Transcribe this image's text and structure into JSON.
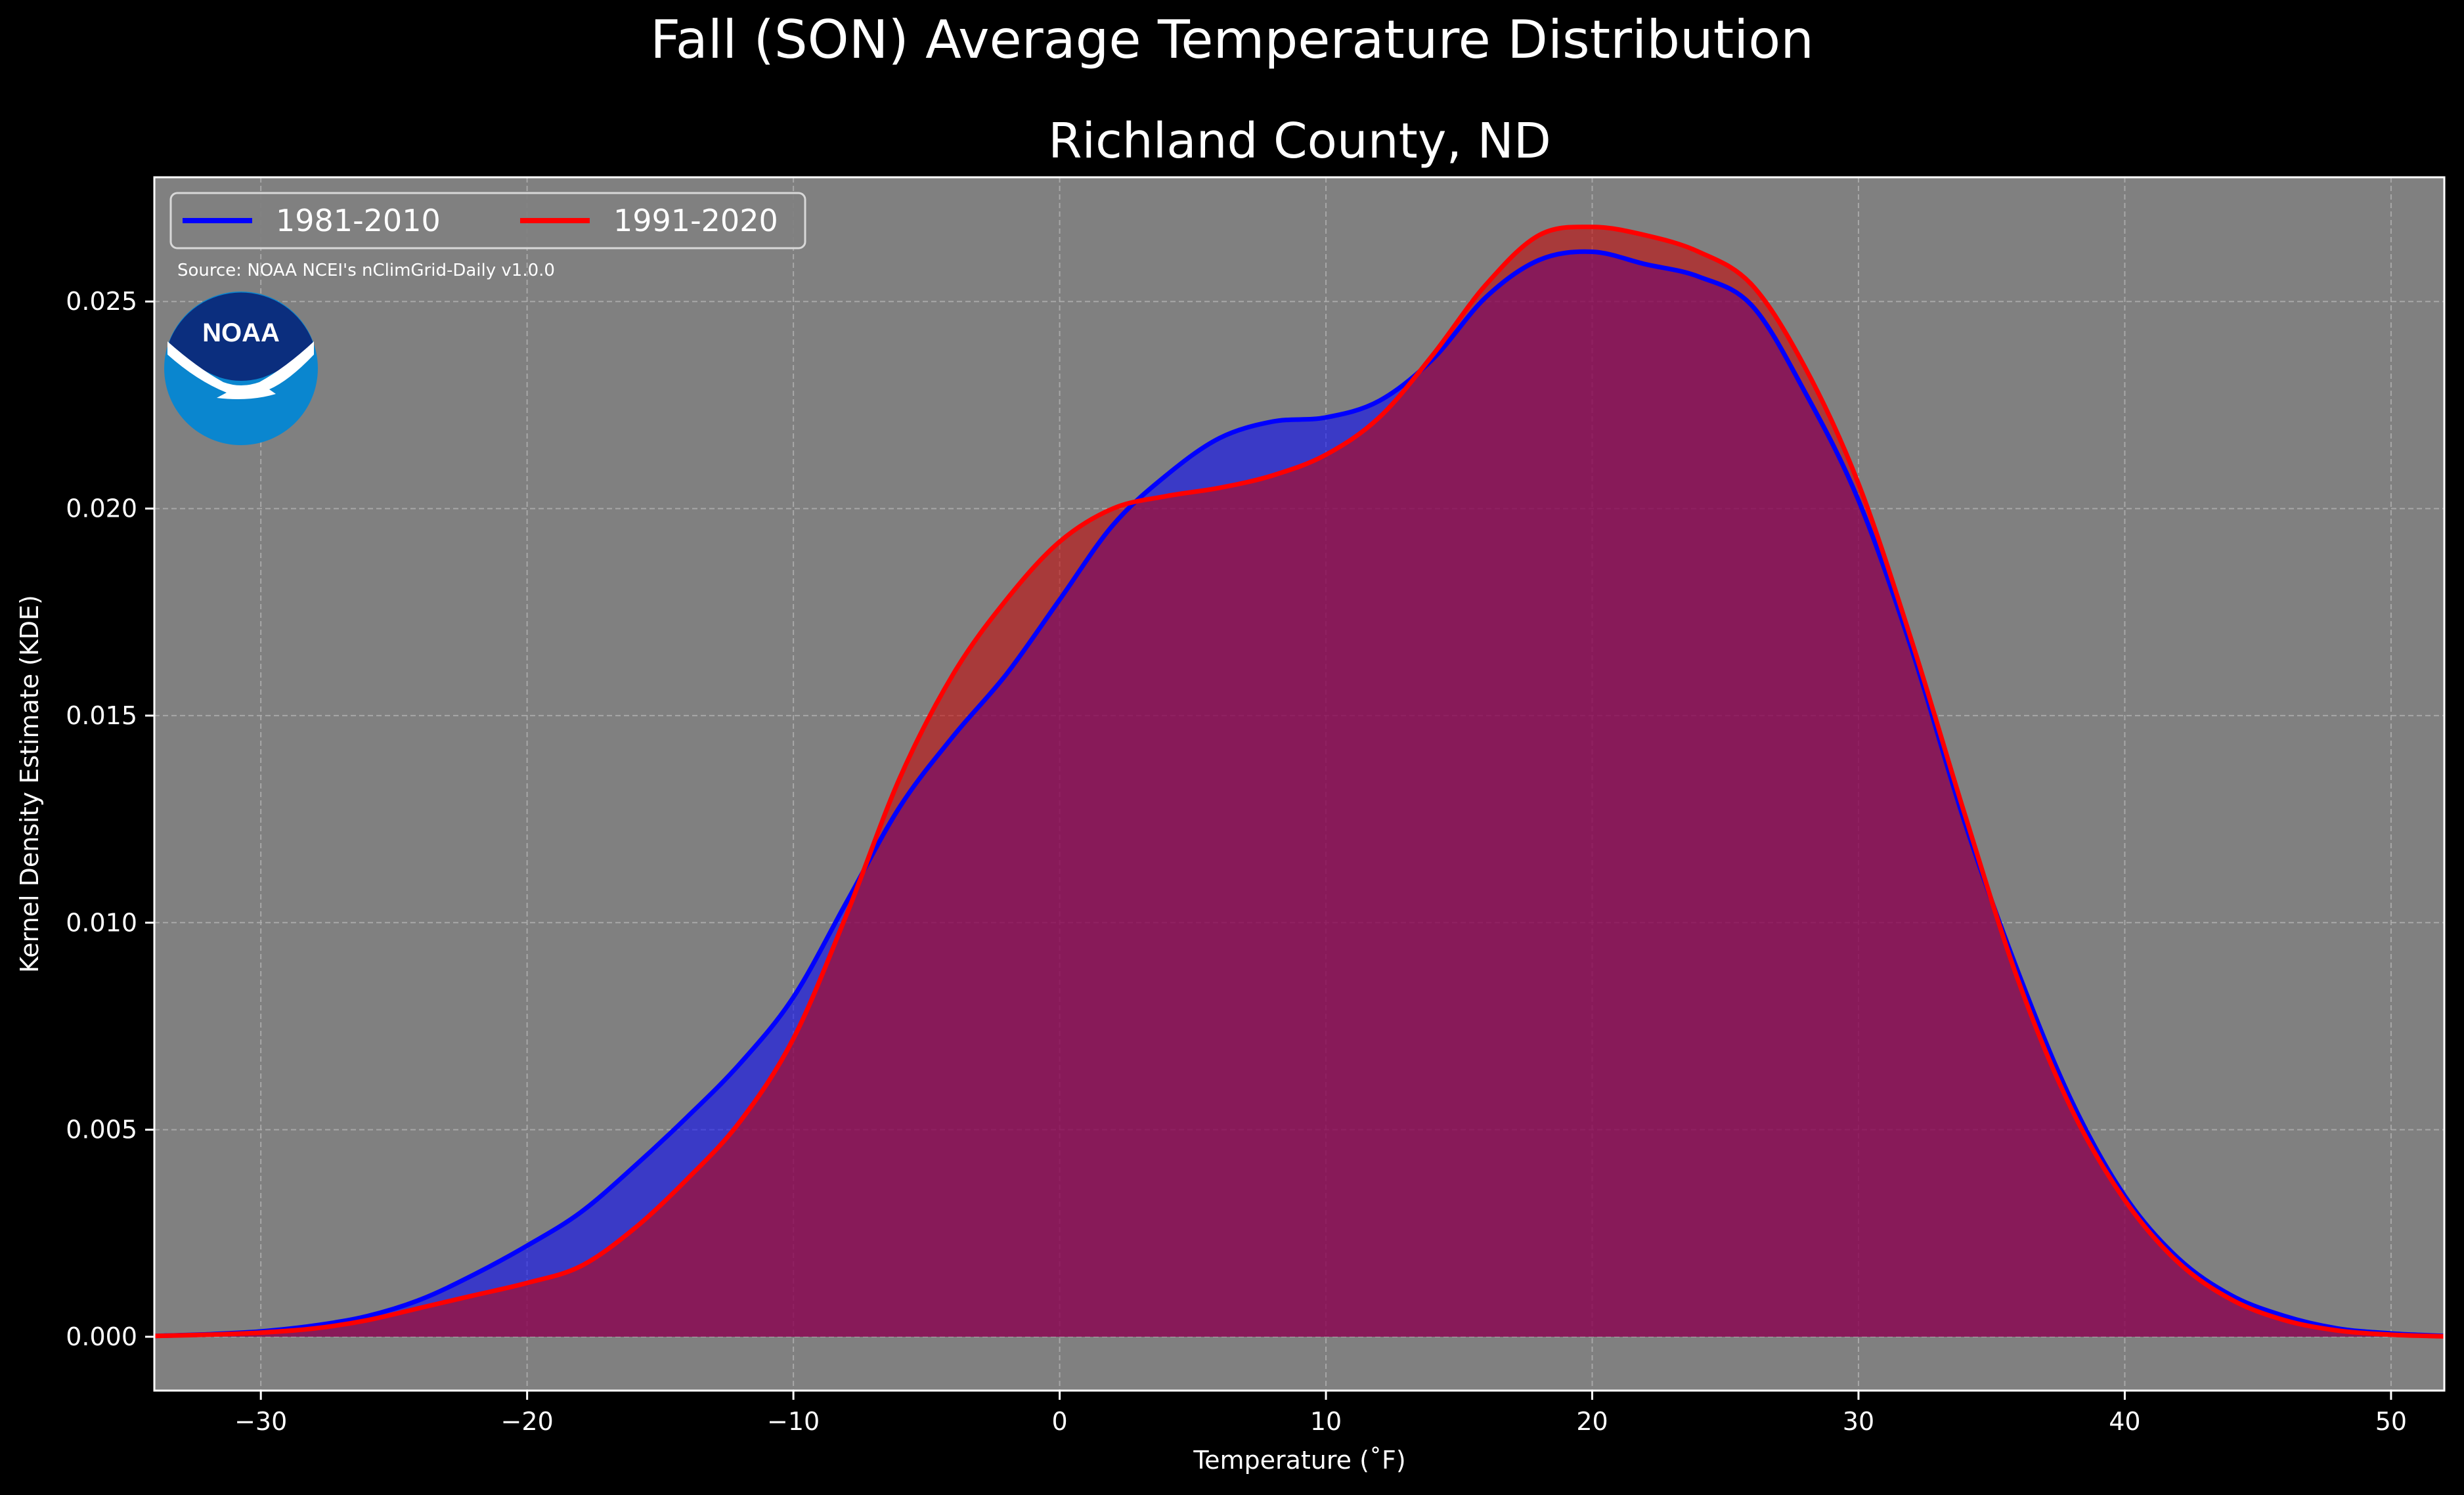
{
  "chart_data": {
    "type": "area",
    "suptitle": "Fall (SON) Average Temperature Distribution",
    "title": "Richland County, ND",
    "xlabel": "Temperature ($^\\circ$F)",
    "xlabel_display": "Temperature (˚F)",
    "ylabel": "Kernel Density Estimate (KDE)",
    "xlim": [
      -34,
      52
    ],
    "ylim": [
      -0.0013,
      0.028
    ],
    "xticks": [
      -30,
      -20,
      -10,
      0,
      10,
      20,
      30,
      40,
      50
    ],
    "xtick_labels": [
      "−30",
      "−20",
      "−10",
      "0",
      "10",
      "20",
      "30",
      "40",
      "50"
    ],
    "yticks": [
      0.0,
      0.005,
      0.01,
      0.015,
      0.02,
      0.025
    ],
    "ytick_labels": [
      "0.000",
      "0.005",
      "0.010",
      "0.015",
      "0.020",
      "0.025"
    ],
    "grid": true,
    "legend_position": "top-left",
    "source_note": "Source: NOAA NCEI's nClimGrid-Daily v1.0.0",
    "logo_text": "NOAA",
    "colors": {
      "background": "#000000",
      "plot_background": "#808080",
      "grid": "#b0b0b0"
    },
    "series": [
      {
        "name": "1981-2010",
        "color": "#0000ff",
        "fill": "#0000ff",
        "x": [
          -34,
          -32,
          -30,
          -28,
          -26,
          -24,
          -22,
          -20,
          -18,
          -16,
          -14,
          -12,
          -10,
          -8,
          -6,
          -4,
          -2,
          0,
          2,
          4,
          6,
          8,
          10,
          12,
          14,
          16,
          18,
          20,
          22,
          24,
          26,
          28,
          30,
          32,
          34,
          36,
          38,
          40,
          42,
          44,
          46,
          48,
          50,
          52
        ],
        "y": [
          2e-05,
          6e-05,
          0.00013,
          0.00027,
          0.0005,
          0.0009,
          0.0015,
          0.0022,
          0.003,
          0.0041,
          0.0053,
          0.0066,
          0.0082,
          0.0105,
          0.0128,
          0.0145,
          0.016,
          0.0178,
          0.0196,
          0.0208,
          0.0217,
          0.0221,
          0.0222,
          0.0226,
          0.0236,
          0.0251,
          0.026,
          0.0262,
          0.0259,
          0.0256,
          0.0249,
          0.0228,
          0.0202,
          0.0166,
          0.0124,
          0.0088,
          0.0057,
          0.0034,
          0.0019,
          0.001,
          0.0005,
          0.0002,
          8e-05,
          2e-05
        ]
      },
      {
        "name": "1991-2020",
        "color": "#ff0000",
        "fill": "#c80000",
        "x": [
          -34,
          -32,
          -30,
          -28,
          -26,
          -24,
          -22,
          -20,
          -18,
          -16,
          -14,
          -12,
          -10,
          -8,
          -6,
          -4,
          -2,
          0,
          2,
          4,
          6,
          8,
          10,
          12,
          14,
          16,
          18,
          20,
          22,
          24,
          26,
          28,
          30,
          32,
          34,
          36,
          38,
          40,
          42,
          44,
          46,
          48,
          50,
          52
        ],
        "y": [
          2e-05,
          5e-05,
          0.0001,
          0.0002,
          0.0004,
          0.0007,
          0.001,
          0.0013,
          0.0017,
          0.0026,
          0.0038,
          0.0052,
          0.0072,
          0.0102,
          0.0135,
          0.016,
          0.0178,
          0.0192,
          0.02,
          0.0203,
          0.0205,
          0.0208,
          0.0213,
          0.0222,
          0.0237,
          0.0254,
          0.0266,
          0.0268,
          0.0266,
          0.0262,
          0.0254,
          0.0234,
          0.0206,
          0.0168,
          0.0126,
          0.0086,
          0.0055,
          0.0033,
          0.0018,
          0.0009,
          0.0004,
          0.00015,
          5e-05,
          1e-05
        ]
      }
    ]
  }
}
